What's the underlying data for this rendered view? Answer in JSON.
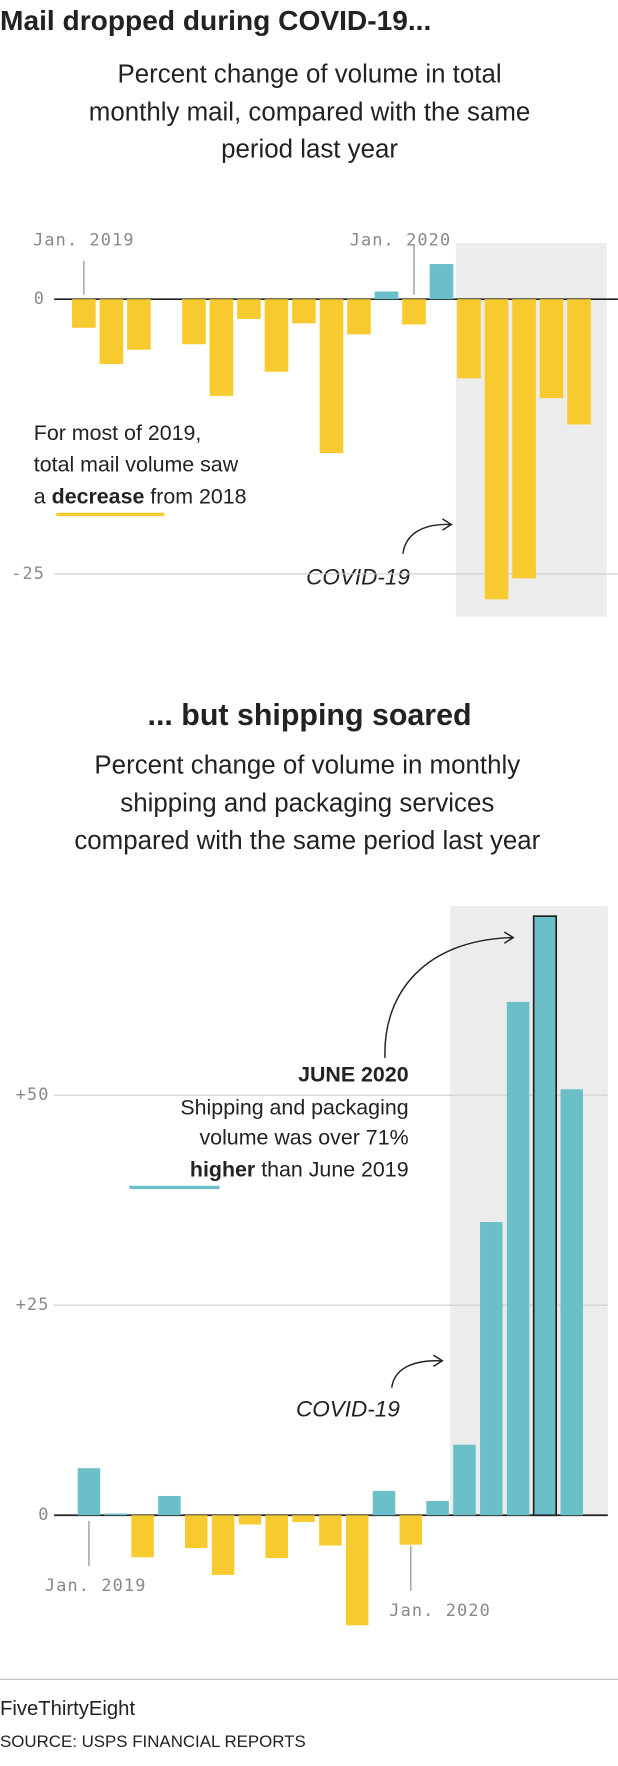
{
  "chart_data": [
    {
      "type": "bar",
      "title": "Mail dropped during COVID-19...",
      "subtitle": [
        "Percent change of volume in total",
        "monthly mail, compared with the same",
        "period last year"
      ],
      "categories": [
        "Jan. 2019",
        null,
        null,
        null,
        null,
        null,
        null,
        null,
        null,
        null,
        null,
        null,
        "Jan. 2020",
        null,
        null,
        null,
        null,
        null,
        null
      ],
      "values": [
        -2.6,
        -5.9,
        -4.6,
        null,
        -4.1,
        -8.8,
        -1.8,
        -6.6,
        -2.2,
        -14.0,
        -3.2,
        0.7,
        -2.3,
        3.2,
        -7.2,
        -27.3,
        -25.4,
        -9.0,
        -11.4
      ],
      "colors": {
        "positive": "#6bbfc8",
        "negative": "#f7cb2f"
      },
      "ylim": [
        -29,
        5
      ],
      "yticks": [
        0,
        -25
      ],
      "grid": true,
      "annotation": {
        "lines": [
          "For most of 2019,",
          "total mail volume saw"
        ],
        "before": "a",
        "emphasis": "decrease",
        "after": "from 2018"
      },
      "event_label": "COVID-19"
    },
    {
      "type": "bar",
      "title": "... but shipping soared",
      "subtitle": [
        "Percent change of volume in monthly",
        "shipping and packaging services",
        "compared with the same period last year"
      ],
      "categories": [
        "Jan. 2019",
        null,
        null,
        null,
        null,
        null,
        null,
        null,
        null,
        null,
        null,
        null,
        "Jan. 2020",
        null,
        null,
        null,
        null,
        null,
        null
      ],
      "values": [
        5.6,
        0.2,
        -5.0,
        2.3,
        -3.9,
        -7.1,
        -1.1,
        -5.1,
        -0.8,
        -3.6,
        -13.1,
        2.9,
        -3.5,
        1.7,
        8.4,
        34.9,
        61.1,
        71.3,
        50.7
      ],
      "colors": {
        "positive": "#6bbfc8",
        "negative": "#f7cb2f"
      },
      "highlight_index": 17,
      "ylim": [
        -13.5,
        72.5
      ],
      "yticks": [
        {
          "value": 50,
          "label": "+50"
        },
        {
          "value": 25,
          "label": "+25"
        },
        0
      ],
      "grid": true,
      "annotation": {
        "heading": "JUNE 2020",
        "lines": [
          "Shipping and packaging",
          "volume was over 71%"
        ],
        "emphasis": "higher",
        "after": "than June 2019"
      },
      "event_label": "COVID-19"
    }
  ],
  "footer": {
    "brand": "FiveThirtyEight",
    "source": "SOURCE: USPS FINANCIAL REPORTS"
  }
}
